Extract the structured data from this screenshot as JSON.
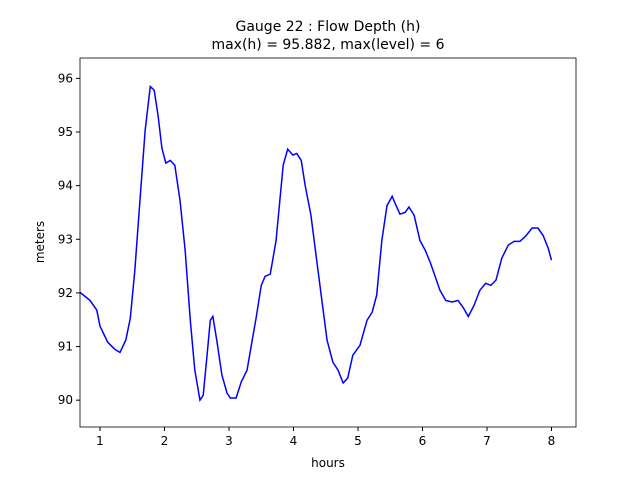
{
  "chart_data": {
    "type": "line",
    "title": "Gauge 22 : Flow Depth (h)",
    "subtitle": "max(h) =  95.882,    max(level) = 6",
    "xlabel": "hours",
    "ylabel": "meters",
    "xlim": [
      0.69,
      8.38
    ],
    "ylim": [
      89.5,
      96.38
    ],
    "xticks": [
      1,
      2,
      3,
      4,
      5,
      6,
      7,
      8
    ],
    "yticks": [
      90,
      91,
      92,
      93,
      94,
      95,
      96
    ],
    "x": [
      0.69,
      0.845,
      0.95,
      1.0,
      1.12,
      1.23,
      1.31,
      1.4,
      1.47,
      1.54,
      1.62,
      1.7,
      1.78,
      1.84,
      1.9,
      1.96,
      2.02,
      2.09,
      2.16,
      2.24,
      2.32,
      2.4,
      2.47,
      2.55,
      2.6,
      2.66,
      2.71,
      2.75,
      2.81,
      2.89,
      2.97,
      3.02,
      3.11,
      3.19,
      3.28,
      3.36,
      3.42,
      3.5,
      3.56,
      3.64,
      3.73,
      3.84,
      3.91,
      3.99,
      4.05,
      4.12,
      4.18,
      4.27,
      4.35,
      4.44,
      4.52,
      4.61,
      4.69,
      4.77,
      4.84,
      4.92,
      5.03,
      5.14,
      5.22,
      5.29,
      5.37,
      5.45,
      5.53,
      5.59,
      5.65,
      5.73,
      5.79,
      5.87,
      5.96,
      6.04,
      6.12,
      6.19,
      6.27,
      6.36,
      6.46,
      6.55,
      6.63,
      6.71,
      6.8,
      6.89,
      6.98,
      7.06,
      7.14,
      7.23,
      7.33,
      7.42,
      7.51,
      7.6,
      7.7,
      7.79,
      7.87,
      7.95,
      8.0
    ],
    "series": [
      {
        "color": "#0000ff",
        "values": [
          92.01,
          91.86,
          91.68,
          91.38,
          91.08,
          90.95,
          90.89,
          91.12,
          91.53,
          92.42,
          93.73,
          95.03,
          95.85,
          95.78,
          95.31,
          94.7,
          94.42,
          94.47,
          94.38,
          93.73,
          92.8,
          91.49,
          90.56,
          90.0,
          90.09,
          90.84,
          91.49,
          91.56,
          91.12,
          90.47,
          90.13,
          90.04,
          90.04,
          90.34,
          90.56,
          91.12,
          91.53,
          92.14,
          92.31,
          92.35,
          92.98,
          94.38,
          94.68,
          94.57,
          94.6,
          94.47,
          94.01,
          93.45,
          92.7,
          91.86,
          91.12,
          90.71,
          90.56,
          90.32,
          90.41,
          90.84,
          91.02,
          91.49,
          91.64,
          91.96,
          92.98,
          93.63,
          93.8,
          93.63,
          93.47,
          93.5,
          93.6,
          93.45,
          92.98,
          92.8,
          92.57,
          92.33,
          92.05,
          91.86,
          91.83,
          91.86,
          91.73,
          91.56,
          91.77,
          92.05,
          92.18,
          92.14,
          92.24,
          92.65,
          92.89,
          92.96,
          92.96,
          93.06,
          93.21,
          93.21,
          93.07,
          92.83,
          92.61
        ]
      }
    ]
  }
}
